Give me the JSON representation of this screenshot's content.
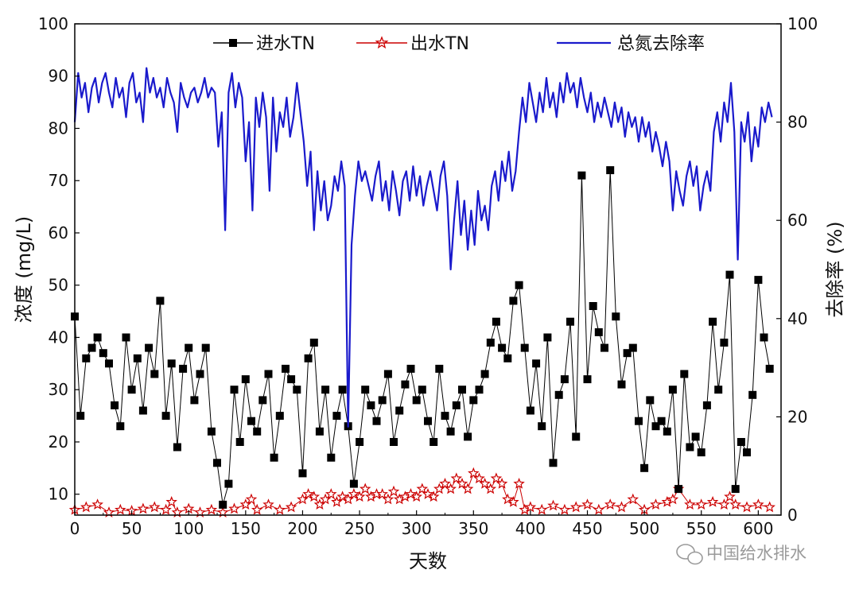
{
  "chart_data": {
    "type": "line",
    "title": "",
    "xlabel": "天数",
    "ylabel_left": "浓度 (mg/L)",
    "ylabel_right": "去除率 (%)",
    "xlim": [
      0,
      620
    ],
    "ylim_left": [
      6,
      100
    ],
    "ylim_right": [
      0,
      100
    ],
    "x_ticks": [
      0,
      50,
      100,
      150,
      200,
      250,
      300,
      350,
      400,
      450,
      500,
      550,
      600
    ],
    "y_left_ticks": [
      10,
      20,
      30,
      40,
      50,
      60,
      70,
      80,
      90,
      100
    ],
    "y_right_ticks": [
      0,
      20,
      40,
      60,
      80,
      100
    ],
    "grid": false,
    "legend_position": "top",
    "series": [
      {
        "name": "进水TN",
        "axis": "left",
        "color": "#000000",
        "marker": "square",
        "x": [
          0,
          5,
          10,
          15,
          20,
          25,
          30,
          35,
          40,
          45,
          50,
          55,
          60,
          65,
          70,
          75,
          80,
          85,
          90,
          95,
          100,
          105,
          110,
          115,
          120,
          125,
          130,
          135,
          140,
          145,
          150,
          155,
          160,
          165,
          170,
          175,
          180,
          185,
          190,
          195,
          200,
          205,
          210,
          215,
          220,
          225,
          230,
          235,
          240,
          245,
          250,
          255,
          260,
          265,
          270,
          275,
          280,
          285,
          290,
          295,
          300,
          305,
          310,
          315,
          320,
          325,
          330,
          335,
          340,
          345,
          350,
          355,
          360,
          365,
          370,
          375,
          380,
          385,
          390,
          395,
          400,
          405,
          410,
          415,
          420,
          425,
          430,
          435,
          440,
          445,
          450,
          455,
          460,
          465,
          470,
          475,
          480,
          485,
          490,
          495,
          500,
          505,
          510,
          515,
          520,
          525,
          530,
          535,
          540,
          545,
          550,
          555,
          560,
          565,
          570,
          575,
          580,
          585,
          590,
          595,
          600,
          605,
          610
        ],
        "values": [
          44,
          25,
          36,
          38,
          40,
          37,
          35,
          27,
          23,
          40,
          30,
          36,
          26,
          38,
          33,
          47,
          25,
          35,
          19,
          34,
          38,
          28,
          33,
          38,
          22,
          16,
          8,
          12,
          30,
          20,
          32,
          24,
          22,
          28,
          33,
          17,
          25,
          34,
          32,
          30,
          14,
          36,
          39,
          22,
          30,
          17,
          25,
          30,
          23,
          12,
          20,
          30,
          27,
          24,
          28,
          33,
          20,
          26,
          31,
          34,
          28,
          30,
          24,
          20,
          34,
          25,
          22,
          27,
          30,
          21,
          28,
          30,
          33,
          39,
          43,
          38,
          36,
          47,
          50,
          38,
          26,
          35,
          23,
          40,
          16,
          29,
          32,
          43,
          21,
          71,
          32,
          46,
          41,
          38,
          72,
          44,
          31,
          37,
          38,
          24,
          15,
          28,
          23,
          24,
          22,
          30,
          11,
          33,
          19,
          21,
          18,
          27,
          43,
          30,
          39,
          52,
          11,
          20,
          18,
          29,
          51,
          40,
          34
        ]
      },
      {
        "name": "出水TN",
        "axis": "left",
        "color": "#cc0000",
        "marker": "star",
        "x": [
          0,
          10,
          20,
          30,
          40,
          50,
          60,
          70,
          80,
          85,
          90,
          100,
          110,
          120,
          130,
          140,
          150,
          155,
          160,
          170,
          180,
          190,
          200,
          205,
          210,
          215,
          220,
          225,
          230,
          235,
          240,
          245,
          250,
          255,
          260,
          265,
          270,
          275,
          280,
          285,
          290,
          295,
          300,
          305,
          310,
          315,
          320,
          325,
          330,
          335,
          340,
          345,
          350,
          355,
          360,
          365,
          370,
          375,
          380,
          385,
          390,
          395,
          400,
          410,
          420,
          430,
          440,
          450,
          460,
          470,
          480,
          490,
          500,
          510,
          520,
          525,
          530,
          540,
          550,
          560,
          570,
          575,
          580,
          590,
          600,
          610
        ],
        "values": [
          7,
          7.5,
          8,
          6.5,
          7,
          6.8,
          7.2,
          7.5,
          7,
          8.5,
          6.5,
          7.2,
          6.5,
          7,
          6.5,
          7.2,
          8,
          9,
          7,
          8,
          7,
          7.5,
          9,
          10,
          9.5,
          8,
          9,
          10,
          8.5,
          9.5,
          9,
          10,
          9.5,
          11,
          9.5,
          10,
          10,
          9,
          10.5,
          9,
          9.5,
          10,
          9.5,
          11,
          10,
          9.5,
          11,
          12,
          11,
          13,
          12,
          11,
          14,
          13,
          12,
          11,
          13,
          12,
          9,
          8.5,
          12,
          7,
          7.5,
          7,
          7.8,
          7,
          7.5,
          8,
          7,
          8,
          7.5,
          9,
          7,
          8,
          8.5,
          9,
          11,
          8,
          8,
          8.5,
          8,
          9.5,
          8,
          7.5,
          8,
          7.5
        ]
      },
      {
        "name": "总氮去除率",
        "axis": "right",
        "color": "#1a1acc",
        "marker": "none",
        "x": [
          0,
          3,
          6,
          9,
          12,
          15,
          18,
          21,
          24,
          27,
          30,
          33,
          36,
          39,
          42,
          45,
          48,
          51,
          54,
          57,
          60,
          63,
          66,
          69,
          72,
          75,
          78,
          81,
          84,
          87,
          90,
          93,
          96,
          99,
          102,
          105,
          108,
          111,
          114,
          117,
          120,
          123,
          126,
          129,
          132,
          135,
          138,
          141,
          144,
          147,
          150,
          153,
          156,
          159,
          162,
          165,
          168,
          171,
          174,
          177,
          180,
          183,
          186,
          189,
          192,
          195,
          198,
          201,
          204,
          207,
          210,
          213,
          216,
          219,
          222,
          225,
          228,
          231,
          234,
          237,
          240,
          243,
          246,
          249,
          252,
          255,
          258,
          261,
          264,
          267,
          270,
          273,
          276,
          279,
          282,
          285,
          288,
          291,
          294,
          297,
          300,
          303,
          306,
          309,
          312,
          315,
          318,
          321,
          324,
          327,
          330,
          333,
          336,
          339,
          342,
          345,
          348,
          351,
          354,
          357,
          360,
          363,
          366,
          369,
          372,
          375,
          378,
          381,
          384,
          387,
          390,
          393,
          396,
          399,
          402,
          405,
          408,
          411,
          414,
          417,
          420,
          423,
          426,
          429,
          432,
          435,
          438,
          441,
          444,
          447,
          450,
          453,
          456,
          459,
          462,
          465,
          468,
          471,
          474,
          477,
          480,
          483,
          486,
          489,
          492,
          495,
          498,
          501,
          504,
          507,
          510,
          513,
          516,
          519,
          522,
          525,
          528,
          531,
          534,
          537,
          540,
          543,
          546,
          549,
          552,
          555,
          558,
          561,
          564,
          567,
          570,
          573,
          576,
          579,
          582,
          585,
          588,
          591,
          594,
          597,
          600,
          603,
          606,
          609,
          612
        ],
        "values": [
          80,
          90,
          85,
          88,
          82,
          87,
          89,
          84,
          88,
          90,
          86,
          83,
          89,
          85,
          87,
          81,
          88,
          90,
          84,
          86,
          80,
          91,
          86,
          89,
          85,
          87,
          83,
          89,
          86,
          84,
          78,
          88,
          85,
          83,
          86,
          87,
          84,
          86,
          89,
          85,
          87,
          86,
          75,
          82,
          58,
          86,
          90,
          83,
          88,
          85,
          72,
          80,
          62,
          85,
          79,
          86,
          81,
          66,
          85,
          74,
          82,
          79,
          85,
          77,
          81,
          88,
          82,
          76,
          67,
          74,
          58,
          70,
          62,
          68,
          60,
          63,
          69,
          66,
          72,
          67,
          18,
          55,
          65,
          72,
          68,
          70,
          67,
          64,
          69,
          72,
          64,
          68,
          62,
          70,
          66,
          61,
          68,
          70,
          64,
          71,
          65,
          69,
          63,
          67,
          70,
          66,
          62,
          69,
          72,
          65,
          50,
          60,
          68,
          57,
          64,
          54,
          62,
          55,
          66,
          60,
          63,
          58,
          67,
          70,
          64,
          72,
          68,
          74,
          66,
          70,
          78,
          85,
          80,
          88,
          84,
          80,
          86,
          82,
          89,
          83,
          86,
          81,
          88,
          84,
          90,
          86,
          88,
          83,
          89,
          85,
          82,
          86,
          80,
          84,
          81,
          85,
          82,
          79,
          84,
          80,
          83,
          77,
          82,
          79,
          81,
          76,
          81,
          77,
          80,
          74,
          78,
          75,
          71,
          76,
          72,
          62,
          70,
          66,
          63,
          69,
          72,
          67,
          71,
          62,
          67,
          70,
          66,
          78,
          82,
          76,
          84,
          80,
          88,
          78,
          52,
          80,
          76,
          82,
          72,
          79,
          75,
          83,
          80,
          84,
          81
        ]
      }
    ],
    "watermark": "中国给水排水"
  }
}
